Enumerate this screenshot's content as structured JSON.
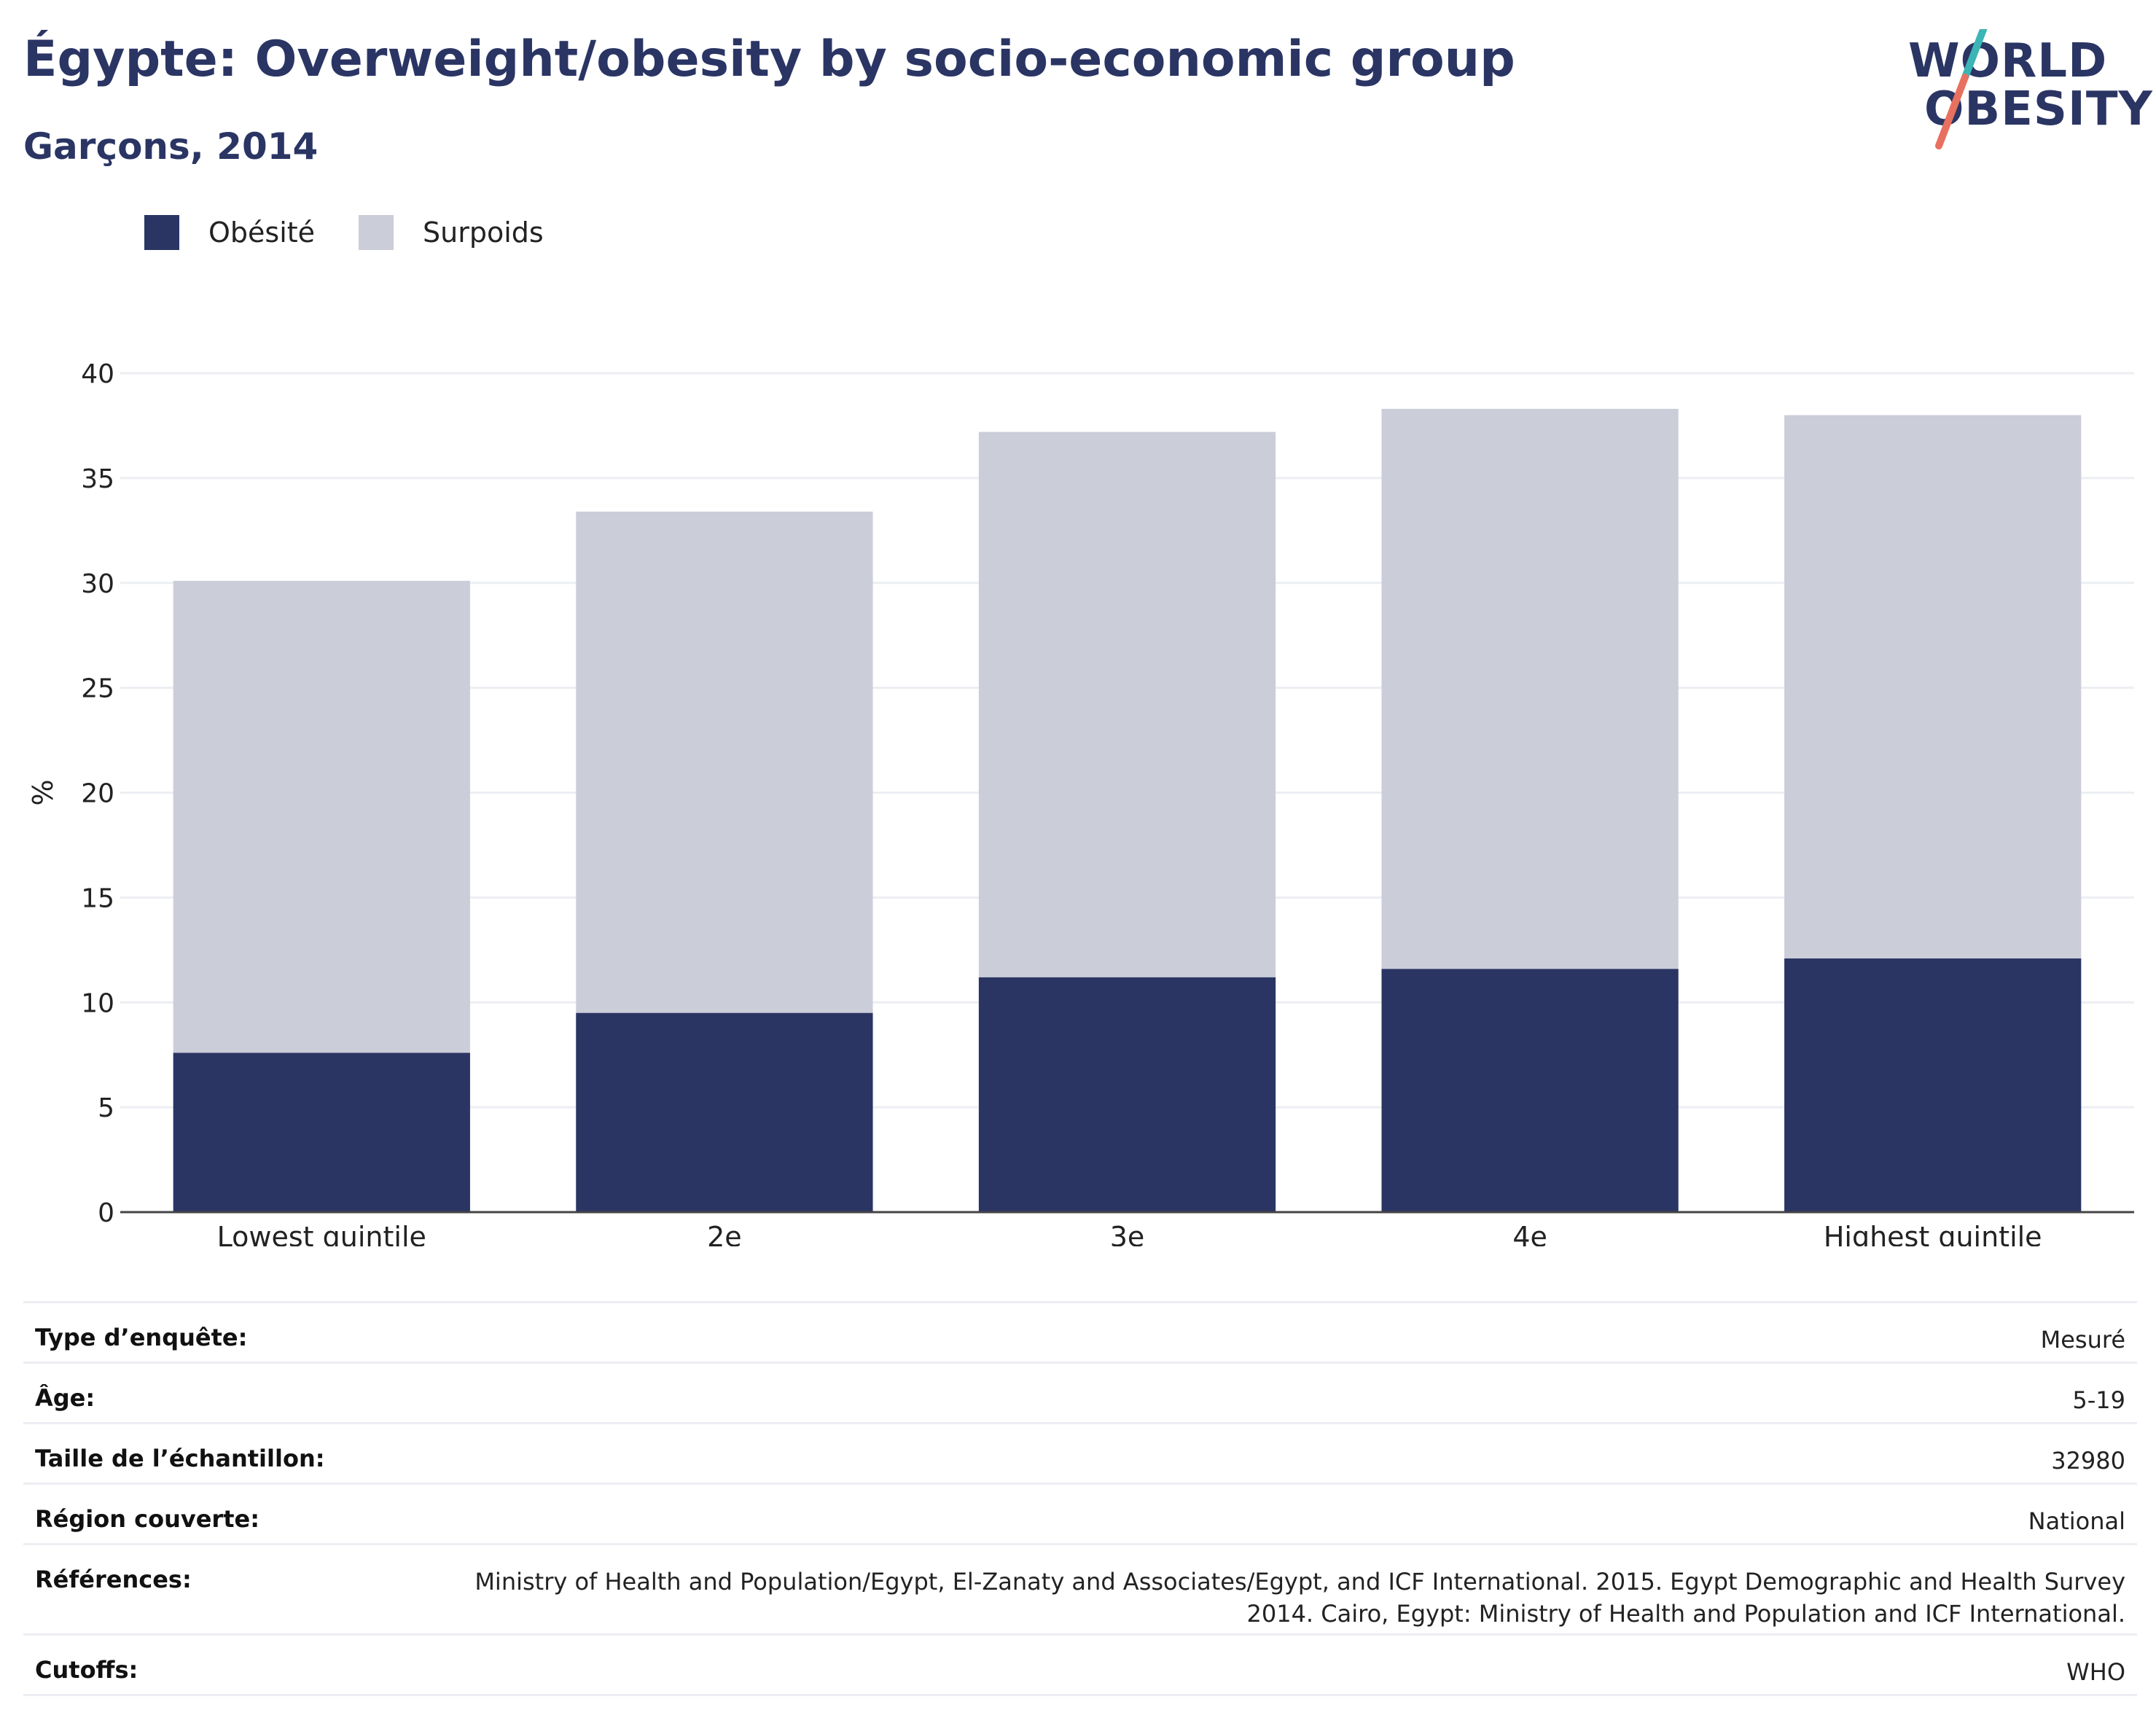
{
  "header": {
    "title": "Égypte: Overweight/obesity by socio-economic group",
    "subtitle": "Garçons, 2014"
  },
  "logo": {
    "line1": "WORLD",
    "line2": "OBESITY",
    "colors": {
      "text": "#2a3564",
      "slash_top": "#3bb5b5",
      "slash_bottom": "#e8705e"
    }
  },
  "legend": {
    "items": [
      {
        "label": "Obésité",
        "color": "#2a3564"
      },
      {
        "label": "Surpoids",
        "color": "#cbcdd9"
      }
    ]
  },
  "chart_data": {
    "type": "bar",
    "stacked": true,
    "categories": [
      "Lowest quintile",
      "2e",
      "3e",
      "4e",
      "Highest quintile"
    ],
    "series": [
      {
        "name": "Obésité",
        "values": [
          7.6,
          9.5,
          11.2,
          11.6,
          12.1
        ],
        "color": "#2a3564"
      },
      {
        "name": "Surpoids",
        "values": [
          22.5,
          23.9,
          26.0,
          26.7,
          25.9
        ],
        "color": "#cbcdd9"
      }
    ],
    "ylabel": "%",
    "xlabel": "",
    "ylim": [
      0,
      40
    ],
    "yticks": [
      "0",
      "5",
      "10",
      "15",
      "20",
      "25",
      "30",
      "35",
      "40"
    ],
    "grid": true,
    "legend_position": "top-left"
  },
  "meta": {
    "rows": [
      {
        "key": "Type d’enquête:",
        "value": "Mesuré"
      },
      {
        "key": "Âge:",
        "value": "5-19"
      },
      {
        "key": "Taille de l’échantillon:",
        "value": "32980"
      },
      {
        "key": "Région couverte:",
        "value": "National"
      },
      {
        "key": "Références:",
        "value": "Ministry of Health and Population/Egypt, El-Zanaty and Associates/Egypt, and ICF International. 2015. Egypt Demographic and Health Survey 2014. Cairo, Egypt: Ministry of Health and Population and ICF International."
      },
      {
        "key": "Cutoffs:",
        "value": "WHO"
      }
    ]
  }
}
